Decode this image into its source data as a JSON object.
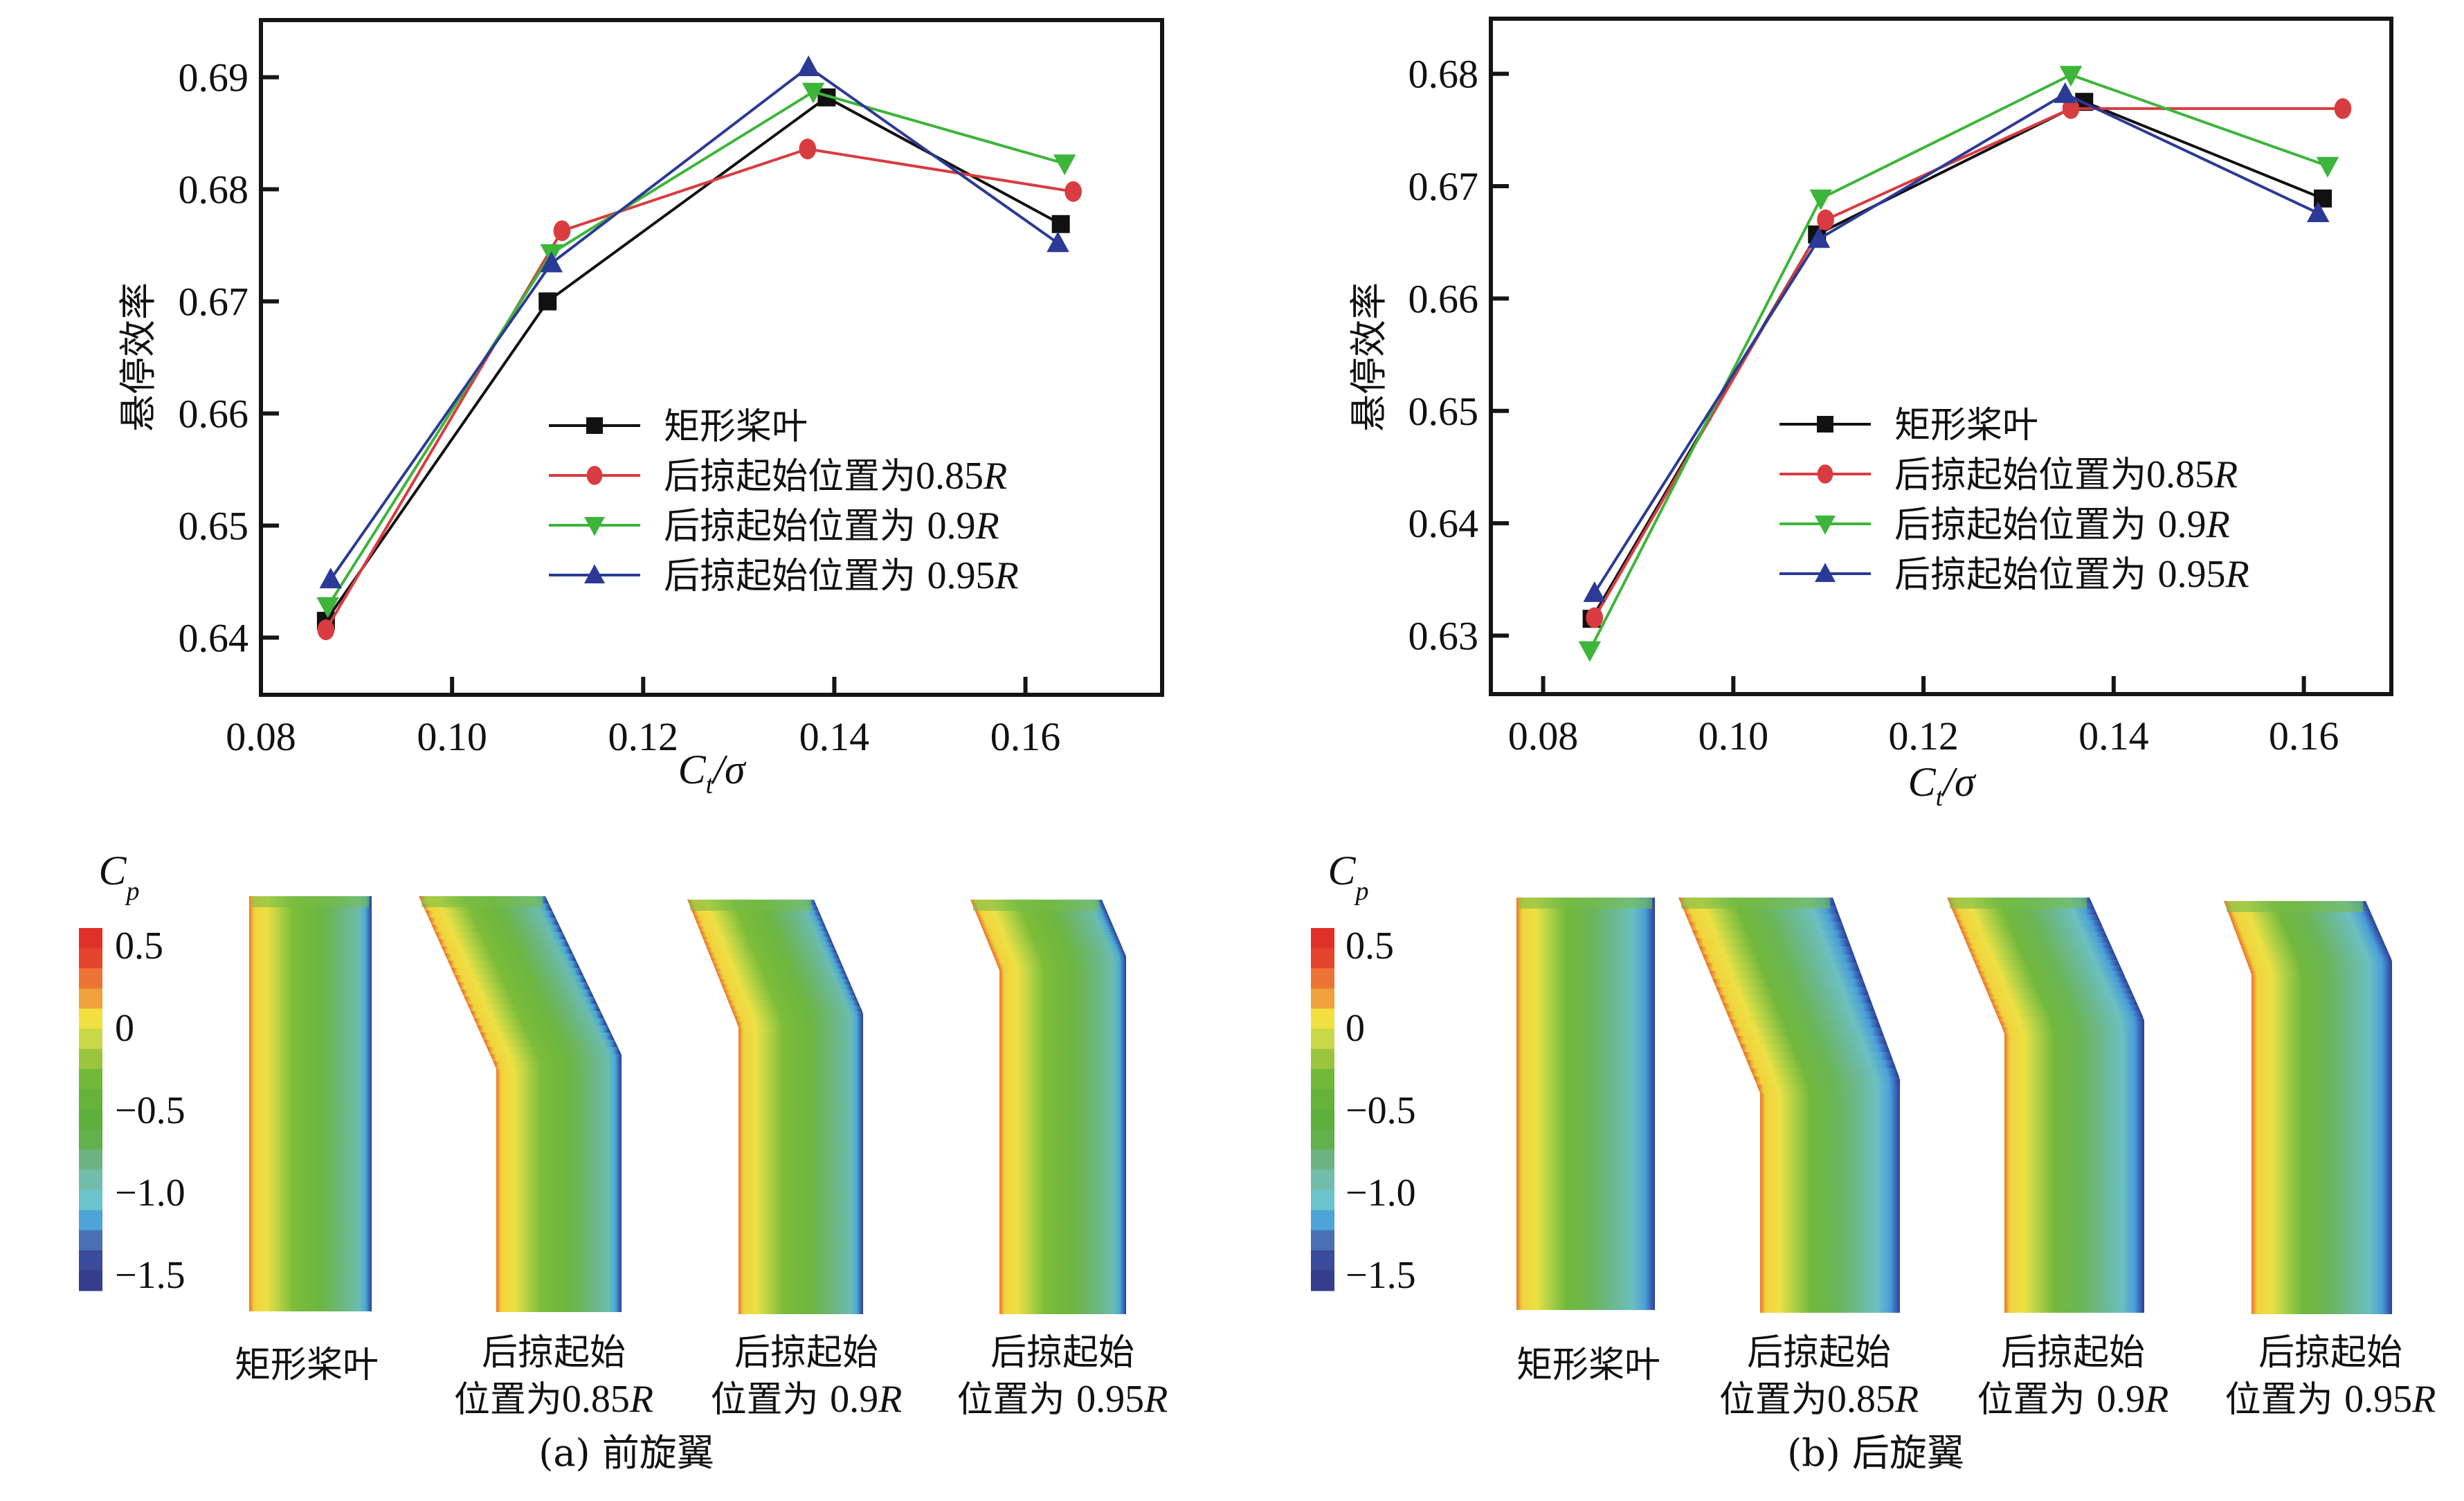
{
  "chart_data": [
    {
      "type": "line",
      "panel": "a",
      "title": "",
      "xlabel": "Ct/σ",
      "xlabel_main": "C",
      "xlabel_sub": "t",
      "xlabel_rest": "/σ",
      "ylabel": "悬停效率",
      "xlim": [
        0.08,
        0.1743
      ],
      "ylim": [
        0.6349,
        0.6951
      ],
      "xticks": [
        0.08,
        0.1,
        0.12,
        0.14,
        0.16
      ],
      "xtick_labels": [
        "0.08",
        "0.10",
        "0.12",
        "0.14",
        "0.16"
      ],
      "yticks": [
        0.64,
        0.65,
        0.66,
        0.67,
        0.68,
        0.69
      ],
      "ytick_labels": [
        "0.64",
        "0.65",
        "0.66",
        "0.67",
        "0.68",
        "0.69"
      ],
      "grid": false,
      "legend_position": "center-right",
      "series": [
        {
          "name": "矩形桨叶",
          "color": "#111111",
          "marker": "square",
          "x": [
            0.0868,
            0.11,
            0.1392,
            0.1637
          ],
          "y": [
            0.6415,
            0.67,
            0.6882,
            0.6769
          ]
        },
        {
          "name": "后掠起始位置为0.85R",
          "name_prefix": "后掠起始位置为",
          "name_value": "0.85",
          "name_suffix": "R",
          "color": "#d83c40",
          "marker": "circle",
          "x": [
            0.0868,
            0.1115,
            0.1372,
            0.165
          ],
          "y": [
            0.6407,
            0.6763,
            0.6836,
            0.6798
          ]
        },
        {
          "name": "后掠起始位置为 0.9R",
          "name_prefix": "后掠起始位置为 ",
          "name_value": "0.9",
          "name_suffix": "R",
          "color": "#3db53a",
          "marker": "triangle-down",
          "x": [
            0.087,
            0.1104,
            0.1378,
            0.1641
          ],
          "y": [
            0.6428,
            0.6743,
            0.6887,
            0.6823
          ]
        },
        {
          "name": "后掠起始位置为 0.95R",
          "name_prefix": "后掠起始位置为 ",
          "name_value": "0.95",
          "name_suffix": "R",
          "color": "#2b3a96",
          "marker": "triangle-up",
          "x": [
            0.0873,
            0.1104,
            0.1373,
            0.1634
          ],
          "y": [
            0.6452,
            0.6734,
            0.6909,
            0.6752
          ]
        }
      ]
    },
    {
      "type": "line",
      "panel": "b",
      "title": "",
      "xlabel": "Ct/σ",
      "xlabel_main": "C",
      "xlabel_sub": "t",
      "xlabel_rest": "/σ",
      "ylabel": "悬停效率",
      "xlim": [
        0.0745,
        0.1692
      ],
      "ylim": [
        0.6248,
        0.6849
      ],
      "xticks": [
        0.08,
        0.1,
        0.12,
        0.14,
        0.16
      ],
      "xtick_labels": [
        "0.08",
        "0.10",
        "0.12",
        "0.14",
        "0.16"
      ],
      "yticks": [
        0.63,
        0.64,
        0.65,
        0.66,
        0.67,
        0.68
      ],
      "ytick_labels": [
        "0.63",
        "0.64",
        "0.65",
        "0.66",
        "0.67",
        "0.68"
      ],
      "grid": false,
      "legend_position": "center-right",
      "series": [
        {
          "name": "矩形桨叶",
          "color": "#111111",
          "marker": "square",
          "x": [
            0.0851,
            0.1088,
            0.1369,
            0.162
          ],
          "y": [
            0.6315,
            0.6657,
            0.6775,
            0.6689
          ]
        },
        {
          "name": "后掠起始位置为0.85R",
          "name_prefix": "后掠起始位置为",
          "name_value": "0.85",
          "name_suffix": "R",
          "color": "#d83c40",
          "marker": "circle",
          "x": [
            0.0854,
            0.1097,
            0.1355,
            0.1641
          ],
          "y": [
            0.6316,
            0.667,
            0.6769,
            0.6769
          ]
        },
        {
          "name": "后掠起始位置为 0.9R",
          "name_prefix": "后掠起始位置为 ",
          "name_value": "0.9",
          "name_suffix": "R",
          "color": "#3db53a",
          "marker": "triangle-down",
          "x": [
            0.0849,
            0.1092,
            0.1355,
            0.1625
          ],
          "y": [
            0.6287,
            0.6689,
            0.6799,
            0.6718
          ]
        },
        {
          "name": "后掠起始位置为 0.95R",
          "name_prefix": "后掠起始位置为 ",
          "name_value": "0.95",
          "name_suffix": "R",
          "color": "#2b3a96",
          "marker": "triangle-up",
          "x": [
            0.0854,
            0.109,
            0.1349,
            0.1615
          ],
          "y": [
            0.6338,
            0.6653,
            0.6782,
            0.6676
          ]
        }
      ]
    }
  ],
  "contour_panels": [
    {
      "caption": "(a) 前旋翼",
      "colorbar": {
        "title_main": "C",
        "title_sub": "p",
        "range": [
          -1.6,
          0.6
        ],
        "tick_values": [
          0.5,
          0,
          -0.5,
          -1.0,
          -1.5
        ],
        "tick_labels": [
          "0.5",
          "0",
          "−0.5",
          "−1.0",
          "−1.5"
        ],
        "band_colors": [
          "#e0302a",
          "#e6442c",
          "#ec7434",
          "#f0a03c",
          "#f2e040",
          "#c8d848",
          "#9ac63e",
          "#72b83a",
          "#66b23a",
          "#5eae3e",
          "#64b04c",
          "#6cb484",
          "#72bcaa",
          "#6cc4cc",
          "#4ea4d8",
          "#4a70b4",
          "#3c4c9c",
          "#343e8c"
        ]
      },
      "blades": [
        {
          "label_line1": "矩形桨叶",
          "label_line2": "",
          "label_value": "",
          "label_suffix": "",
          "sweep_start": null
        },
        {
          "label_line1": "后掠起始",
          "label_line2": "位置为",
          "label_value": "0.85",
          "label_suffix": "R",
          "sweep_start": 0.85
        },
        {
          "label_line1": "后掠起始",
          "label_line2": "位置为 ",
          "label_value": "0.9",
          "label_suffix": "R",
          "sweep_start": 0.9
        },
        {
          "label_line1": "后掠起始",
          "label_line2": "位置为 ",
          "label_value": "0.95",
          "label_suffix": "R",
          "sweep_start": 0.95
        }
      ]
    },
    {
      "caption": "(b) 后旋翼",
      "colorbar": {
        "title_main": "C",
        "title_sub": "p",
        "range": [
          -1.6,
          0.6
        ],
        "tick_values": [
          0.5,
          0,
          -0.5,
          -1.0,
          -1.5
        ],
        "tick_labels": [
          "0.5",
          "0",
          "−0.5",
          "−1.0",
          "−1.5"
        ],
        "band_colors": [
          "#e0302a",
          "#e6442c",
          "#ec7434",
          "#f0a03c",
          "#f2e040",
          "#c8d848",
          "#9ac63e",
          "#72b83a",
          "#66b23a",
          "#5eae3e",
          "#64b04c",
          "#6cb484",
          "#72bcaa",
          "#6cc4cc",
          "#4ea4d8",
          "#4a70b4",
          "#3c4c9c",
          "#343e8c"
        ]
      },
      "blades": [
        {
          "label_line1": "矩形桨叶",
          "label_line2": "",
          "label_value": "",
          "label_suffix": "",
          "sweep_start": null
        },
        {
          "label_line1": "后掠起始",
          "label_line2": "位置为",
          "label_value": "0.85",
          "label_suffix": "R",
          "sweep_start": 0.85
        },
        {
          "label_line1": "后掠起始",
          "label_line2": "位置为 ",
          "label_value": "0.9",
          "label_suffix": "R",
          "sweep_start": 0.9
        },
        {
          "label_line1": "后掠起始",
          "label_line2": "位置为 ",
          "label_value": "0.95",
          "label_suffix": "R",
          "sweep_start": 0.95
        }
      ]
    }
  ]
}
